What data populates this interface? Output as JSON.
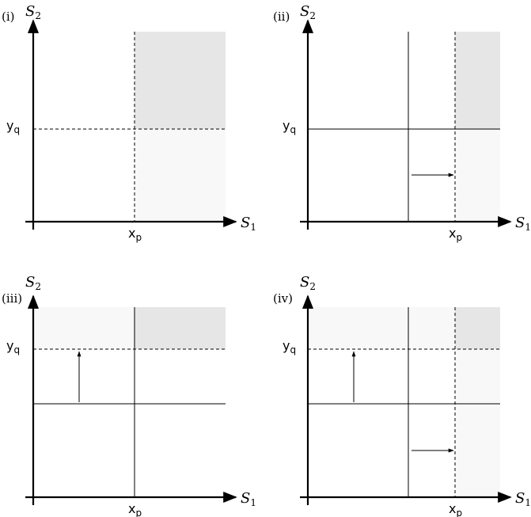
{
  "panels": [
    {
      "label": "(i)",
      "y_axis": {
        "main": "S",
        "sub": "2"
      },
      "x_axis": {
        "main": "S",
        "sub": "1"
      },
      "y_marker": {
        "main": "y",
        "sub": "q"
      },
      "x_marker": {
        "main": "x",
        "sub": "p"
      }
    },
    {
      "label": "(ii)",
      "y_axis": {
        "main": "S",
        "sub": "2"
      },
      "x_axis": {
        "main": "S",
        "sub": "1"
      },
      "y_marker": {
        "main": "y",
        "sub": "q"
      },
      "x_marker": {
        "main": "x",
        "sub": "p"
      }
    },
    {
      "label": "(iii)",
      "y_axis": {
        "main": "S",
        "sub": "2"
      },
      "x_axis": {
        "main": "S",
        "sub": "1"
      },
      "y_marker": {
        "main": "y",
        "sub": "q"
      },
      "x_marker": {
        "main": "x",
        "sub": "p"
      }
    },
    {
      "label": "(iv)",
      "y_axis": {
        "main": "S",
        "sub": "2"
      },
      "x_axis": {
        "main": "S",
        "sub": "1"
      },
      "y_marker": {
        "main": "y",
        "sub": "q"
      },
      "x_marker": {
        "main": "x",
        "sub": "p"
      }
    }
  ]
}
